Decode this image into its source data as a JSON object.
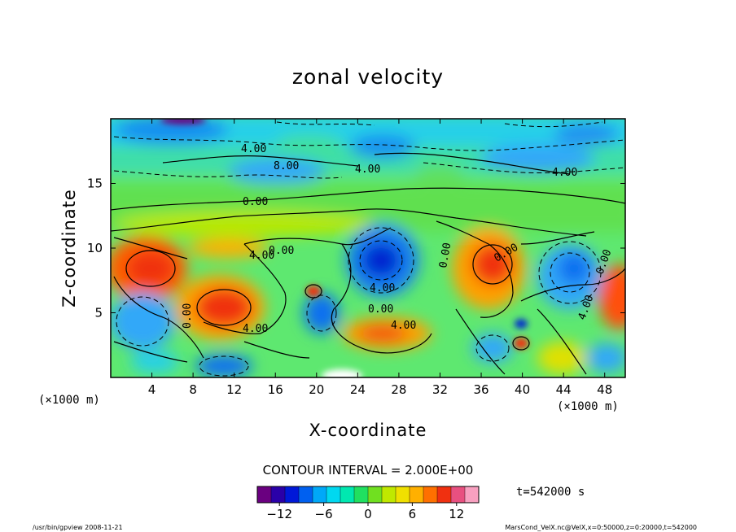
{
  "chart_data": {
    "type": "heatmap",
    "title": "zonal velocity",
    "xlabel": "X-coordinate",
    "ylabel": "Z-coordinate",
    "x_unit": "(×1000 m)",
    "xlim": [
      0,
      50
    ],
    "ylim": [
      0,
      20
    ],
    "x_ticks": [
      4,
      8,
      12,
      16,
      20,
      24,
      28,
      32,
      36,
      40,
      44,
      48
    ],
    "y_ticks": [
      5,
      10,
      15
    ],
    "contour_interval_text": "CONTOUR INTERVAL = 2.000E+00",
    "contour_labels": [
      "4.00",
      "8.00",
      "4.00",
      "4.00",
      "0.00",
      "4.00",
      "0.00",
      "0.00",
      "4.00",
      "0.00",
      "4.00",
      "4.00",
      "0.00",
      "4.00",
      "0.00",
      "0.00",
      "4.00"
    ],
    "colorbar": {
      "range": [
        -15,
        15
      ],
      "ticks": [
        -12,
        -6,
        0,
        6,
        12
      ],
      "colors": [
        "#6a0080",
        "#2a00a8",
        "#0018d8",
        "#0060f0",
        "#00a8f8",
        "#00d8f0",
        "#00e8b0",
        "#20e060",
        "#70e020",
        "#c0e800",
        "#f0e000",
        "#ffb000",
        "#ff7000",
        "#f03010",
        "#e85080",
        "#f8a0c0"
      ]
    },
    "time_label": "t=542000 s",
    "footer_left": "/usr/bin/gpview   2008-11-21",
    "footer_right": "MarsCond_VelX.nc@VelX,x=0:50000,z=0:20000,t=542000"
  }
}
